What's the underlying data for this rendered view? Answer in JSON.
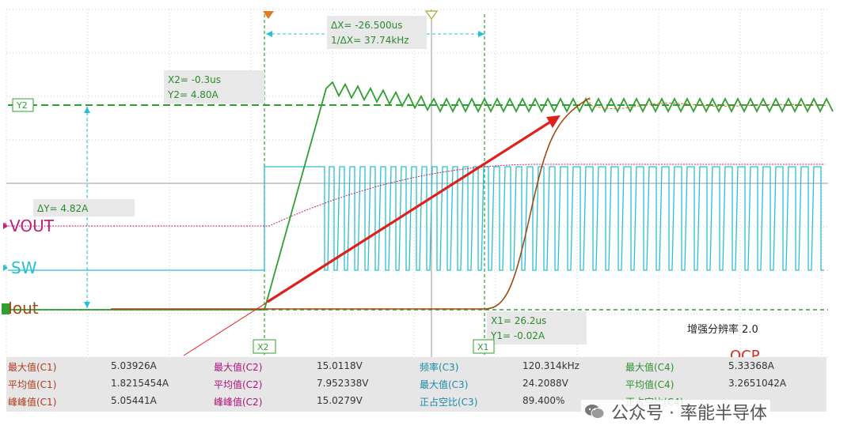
{
  "channels": {
    "vout": {
      "label": "VOUT",
      "num": "2",
      "color": "#c0207a"
    },
    "sw": {
      "label": "SW",
      "num": "3",
      "color": "#28c0d0"
    },
    "iout": {
      "label": "Iout",
      "num": "",
      "color": "#a04a10"
    }
  },
  "cursors": {
    "y2_label": "Y2",
    "x1_label": "X1",
    "x2_label": "X2",
    "delta_x": "ΔX= -26.500us",
    "inv_delta_x": "1/ΔX= 37.74kHz",
    "x2_readout": "X2= -0.3us",
    "y2_readout": "Y2= 4.80A",
    "delta_y": "ΔY= 4.82A",
    "x1_readout": "X1= 26.2us",
    "y1_readout": "Y1= -0.02A"
  },
  "annotations": {
    "enhance": "增强分辨率 2.0",
    "ocp": "OCP"
  },
  "measurements": [
    [
      {
        "label": "最大值(C1)",
        "value": "5.03926A",
        "ch": "c1"
      },
      {
        "label": "最大值(C2)",
        "value": "15.0118V",
        "ch": "c2"
      },
      {
        "label": "频率(C3)",
        "value": "120.314kHz",
        "ch": "c3"
      },
      {
        "label": "最大值(C4)",
        "value": "5.33368A",
        "ch": "c4"
      }
    ],
    [
      {
        "label": "平均值(C1)",
        "value": "1.8215454A",
        "ch": "c1"
      },
      {
        "label": "平均值(C2)",
        "value": "7.952338V",
        "ch": "c2"
      },
      {
        "label": "最大值(C3)",
        "value": "24.2088V",
        "ch": "c3"
      },
      {
        "label": "平均值(C4)",
        "value": "3.2651042A",
        "ch": "c4"
      }
    ],
    [
      {
        "label": "峰峰值(C1)",
        "value": "5.05441A",
        "ch": "c1"
      },
      {
        "label": "峰峰值(C2)",
        "value": "15.0279V",
        "ch": "c2"
      },
      {
        "label": "正占空比(C3)",
        "value": "89.400%",
        "ch": "c3"
      },
      {
        "label": "正占空比(C4)",
        "value": "",
        "ch": "c4"
      }
    ]
  ],
  "watermark": {
    "text": "公众号 · 率能半导体",
    "icon": "wechat-icon"
  },
  "colors": {
    "c1": "#b03a1a",
    "c2": "#b0107a",
    "c3": "#1a8aa8",
    "c4": "#2f8f2f",
    "grid": "#c8c8c8"
  }
}
